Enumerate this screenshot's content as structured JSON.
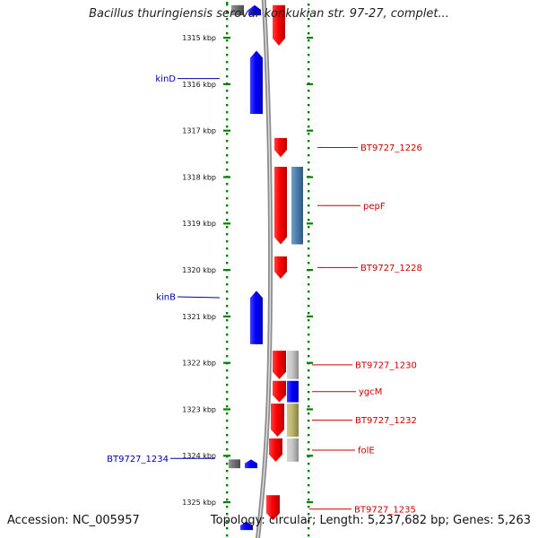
{
  "title": "Bacillus thuringiensis serovar konkukian str. 97-27, complet...",
  "footer": {
    "accession": "Accession: NC_005957",
    "topology": "Topology: circular; Length: 5,237,682 bp; Genes: 5,263"
  },
  "colors": {
    "forward": "#ff0000",
    "reverse": "#0000ff",
    "steelblue": "#4a7fb0",
    "olive": "#bdb76b",
    "grey": "#c8c8c8",
    "darkgrey": "#707070",
    "ruler": "#008000",
    "backbone": "#8c8c8c",
    "forward_label": "#cc0000",
    "reverse_label": "#0000aa"
  },
  "chart_data": {
    "type": "genome-map",
    "unit": "kbp",
    "range_kbp": [
      1314.38,
      1325.55
    ],
    "ruler_ticks": [
      {
        "kbp": 1315,
        "label": "1315 kbp"
      },
      {
        "kbp": 1316,
        "label": "1316 kbp"
      },
      {
        "kbp": 1317,
        "label": "1317 kbp"
      },
      {
        "kbp": 1318,
        "label": "1318 kbp"
      },
      {
        "kbp": 1319,
        "label": "1319 kbp"
      },
      {
        "kbp": 1320,
        "label": "1320 kbp"
      },
      {
        "kbp": 1321,
        "label": "1321 kbp"
      },
      {
        "kbp": 1322,
        "label": "1322 kbp"
      },
      {
        "kbp": 1323,
        "label": "1323 kbp"
      },
      {
        "kbp": 1324,
        "label": "1324 kbp"
      },
      {
        "kbp": 1325,
        "label": "1325 kbp"
      }
    ],
    "genes": [
      {
        "id": "g-top-grey",
        "track": "reverse",
        "strand": "none",
        "start": 1314.3,
        "end": 1314.52,
        "color": "grey"
      },
      {
        "id": "g-top-blue",
        "track": "reverse",
        "strand": "up",
        "start": 1314.3,
        "end": 1314.52,
        "color": "reverse"
      },
      {
        "id": "g-1",
        "track": "forward",
        "strand": "down",
        "start": 1314.3,
        "end": 1315.17,
        "color": "forward"
      },
      {
        "id": "kinD",
        "name": "kinD",
        "label_side": "left",
        "track": "reverse",
        "strand": "up",
        "start": 1315.28,
        "end": 1316.64,
        "color": "reverse"
      },
      {
        "id": "BT9727_1226",
        "name": "BT9727_1226",
        "label_side": "right",
        "track": "forward",
        "strand": "down",
        "start": 1317.16,
        "end": 1317.57,
        "color": "forward"
      },
      {
        "id": "BT9727_1227",
        "name": "pepF",
        "label_side": "right",
        "track": "forward",
        "strand": "down",
        "start": 1317.78,
        "end": 1319.45,
        "color": "forward"
      },
      {
        "id": "pepF-hit",
        "track": "hit",
        "strand": "none",
        "start": 1317.78,
        "end": 1319.45,
        "color": "steelblue"
      },
      {
        "id": "BT9727_1228",
        "name": "BT9727_1228",
        "label_side": "right",
        "track": "forward",
        "strand": "down",
        "start": 1319.71,
        "end": 1320.19,
        "color": "forward"
      },
      {
        "id": "kinB",
        "name": "kinB",
        "label_side": "left",
        "track": "reverse",
        "strand": "up",
        "start": 1320.45,
        "end": 1321.6,
        "color": "reverse"
      },
      {
        "id": "BT9727_1230",
        "name": "BT9727_1230",
        "label_side": "right",
        "track": "forward",
        "strand": "down",
        "start": 1321.74,
        "end": 1322.35,
        "color": "forward"
      },
      {
        "id": "BT9727_1230-hit",
        "track": "hit",
        "strand": "none",
        "start": 1321.74,
        "end": 1322.35,
        "color": "grey"
      },
      {
        "id": "ygcM",
        "name": "ygcM",
        "label_side": "right",
        "track": "forward",
        "strand": "down",
        "start": 1322.39,
        "end": 1322.85,
        "color": "forward"
      },
      {
        "id": "ygcM-hit",
        "track": "hit",
        "strand": "none",
        "start": 1322.39,
        "end": 1322.85,
        "color": "reverse"
      },
      {
        "id": "BT9727_1232",
        "name": "BT9727_1232",
        "label_side": "right",
        "track": "forward",
        "strand": "down",
        "start": 1322.88,
        "end": 1323.59,
        "color": "forward"
      },
      {
        "id": "BT9727_1232-hit",
        "track": "hit",
        "strand": "none",
        "start": 1322.88,
        "end": 1323.59,
        "color": "olive"
      },
      {
        "id": "folE",
        "name": "folE",
        "label_side": "right",
        "track": "forward",
        "strand": "down",
        "start": 1323.63,
        "end": 1324.13,
        "color": "forward"
      },
      {
        "id": "folE-hit",
        "track": "hit",
        "strand": "none",
        "start": 1323.63,
        "end": 1324.13,
        "color": "grey"
      },
      {
        "id": "g-1234-grey",
        "track": "far-reverse",
        "strand": "none",
        "start": 1324.08,
        "end": 1324.27,
        "color": "darkgrey"
      },
      {
        "id": "BT9727_1234",
        "name": "BT9727_1234",
        "label_side": "left",
        "track": "near-reverse",
        "strand": "up",
        "start": 1324.08,
        "end": 1324.27,
        "color": "reverse"
      },
      {
        "id": "BT9727_1235",
        "name": "BT9727_1235",
        "label_side": "right",
        "track": "forward",
        "strand": "down",
        "start": 1324.85,
        "end": 1325.39,
        "color": "forward"
      },
      {
        "id": "g-bottom-blue",
        "track": "reverse",
        "strand": "up",
        "start": 1325.42,
        "end": 1325.6,
        "color": "reverse"
      }
    ]
  }
}
